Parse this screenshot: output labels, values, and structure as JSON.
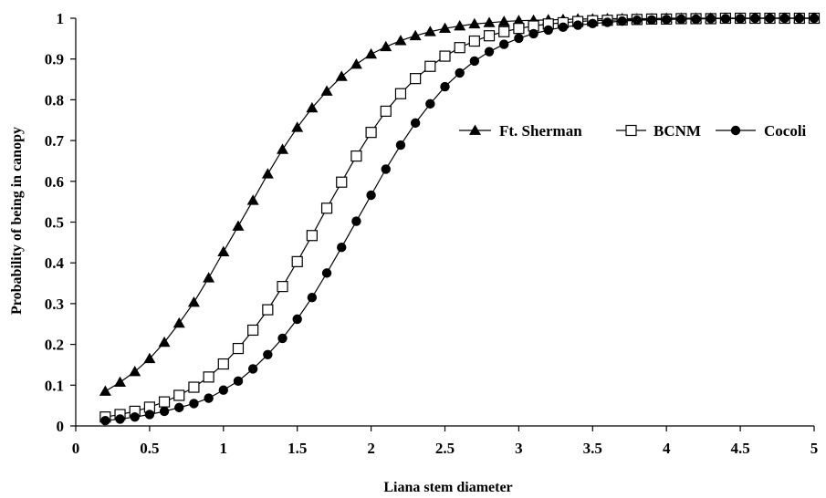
{
  "chart_data": {
    "type": "line",
    "title": "",
    "xlabel": "Liana stem diameter",
    "ylabel": "Probability of being in canopy",
    "xlim": [
      0,
      5
    ],
    "ylim": [
      0,
      1
    ],
    "x_ticks": [
      "0",
      "0.5",
      "1",
      "1.5",
      "2",
      "2.5",
      "3",
      "3.5",
      "4",
      "4.5",
      "5"
    ],
    "y_ticks": [
      "0",
      "0.1",
      "0.2",
      "0.3",
      "0.4",
      "0.5",
      "0.6",
      "0.7",
      "0.8",
      "0.9",
      "1"
    ],
    "grid": false,
    "legend_position": "right",
    "x": [
      0.2,
      0.3,
      0.4,
      0.5,
      0.6,
      0.7,
      0.8,
      0.9,
      1.0,
      1.1,
      1.2,
      1.3,
      1.4,
      1.5,
      1.6,
      1.7,
      1.8,
      1.9,
      2.0,
      2.1,
      2.2,
      2.3,
      2.4,
      2.5,
      2.6,
      2.7,
      2.8,
      2.9,
      3.0,
      3.1,
      3.2,
      3.3,
      3.4,
      3.5,
      3.6,
      3.7,
      3.8,
      3.9,
      4.0,
      4.1,
      4.2,
      4.3,
      4.4,
      4.5,
      4.6,
      4.7,
      4.8,
      4.9,
      5.0
    ],
    "series": [
      {
        "name": "Ft. Sherman",
        "marker": "triangle",
        "values": [
          0.085,
          0.107,
          0.133,
          0.165,
          0.205,
          0.252,
          0.303,
          0.363,
          0.427,
          0.49,
          0.553,
          0.618,
          0.678,
          0.732,
          0.78,
          0.821,
          0.857,
          0.887,
          0.912,
          0.93,
          0.945,
          0.957,
          0.967,
          0.975,
          0.981,
          0.986,
          0.989,
          0.992,
          0.994,
          0.995,
          0.996,
          0.997,
          0.998,
          0.998,
          0.999,
          0.999,
          0.999,
          0.999,
          1.0,
          1.0,
          1.0,
          1.0,
          1.0,
          1.0,
          1.0,
          1.0,
          1.0,
          1.0,
          1.0
        ]
      },
      {
        "name": "BCNM",
        "marker": "open-square",
        "values": [
          0.022,
          0.028,
          0.036,
          0.046,
          0.059,
          0.075,
          0.095,
          0.12,
          0.152,
          0.19,
          0.235,
          0.285,
          0.342,
          0.403,
          0.467,
          0.534,
          0.598,
          0.662,
          0.72,
          0.772,
          0.815,
          0.852,
          0.882,
          0.907,
          0.928,
          0.944,
          0.957,
          0.967,
          0.975,
          0.981,
          0.986,
          0.989,
          0.992,
          0.994,
          0.995,
          0.996,
          0.997,
          0.998,
          0.998,
          0.999,
          0.999,
          0.999,
          1.0,
          1.0,
          1.0,
          1.0,
          1.0,
          1.0,
          1.0
        ]
      },
      {
        "name": "Cocoli",
        "marker": "filled-circle",
        "values": [
          0.013,
          0.017,
          0.022,
          0.028,
          0.036,
          0.045,
          0.055,
          0.068,
          0.088,
          0.11,
          0.14,
          0.175,
          0.215,
          0.262,
          0.315,
          0.375,
          0.438,
          0.502,
          0.566,
          0.63,
          0.689,
          0.743,
          0.79,
          0.832,
          0.866,
          0.895,
          0.918,
          0.936,
          0.951,
          0.962,
          0.971,
          0.978,
          0.983,
          0.987,
          0.99,
          0.993,
          0.995,
          0.996,
          0.997,
          0.998,
          0.998,
          0.999,
          0.999,
          0.999,
          1.0,
          1.0,
          1.0,
          1.0,
          1.0
        ]
      }
    ]
  }
}
